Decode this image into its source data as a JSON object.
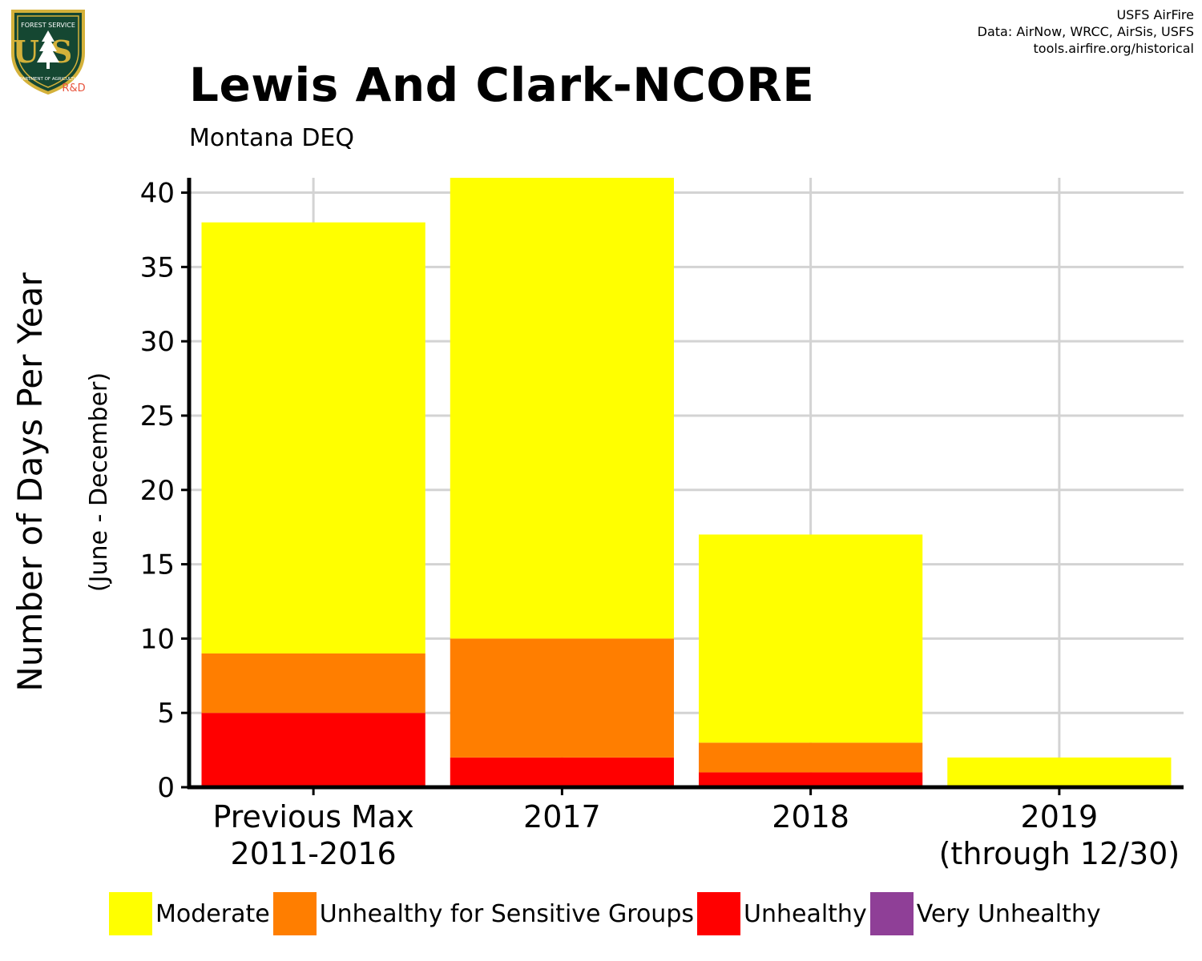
{
  "logo": {
    "top_text": "FOREST SERVICE",
    "shield_text": "US",
    "bottom_text": "DEPARTMENT OF AGRICULTURE",
    "badge": "R&D"
  },
  "credits": [
    "USFS AirFire",
    "Data: AirNow, WRCC, AirSis, USFS",
    "tools.airfire.org/historical"
  ],
  "colors": {
    "moderate": "#ffff00",
    "usg": "#ff7e00",
    "unhealthy": "#ff0000",
    "very_unhealthy": "#8f3f97",
    "grid": "#d3d3d3",
    "logo_green": "#154732",
    "logo_gold": "#d4b13a",
    "badge": "#e8553e"
  },
  "chart_data": {
    "type": "bar",
    "stacked": true,
    "title": "Lewis And Clark-NCORE",
    "subtitle": "Montana DEQ",
    "ylabel": "Number of Days Per Year",
    "ylabel_sub": "(June - December)",
    "ylim": [
      0,
      41
    ],
    "yticks": [
      0,
      5,
      10,
      15,
      20,
      25,
      30,
      35,
      40
    ],
    "grid": true,
    "legend_position": "bottom",
    "categories": [
      [
        "Previous Max",
        "2011-2016"
      ],
      [
        "2017"
      ],
      [
        "2018"
      ],
      [
        "2019",
        "(through 12/30)"
      ]
    ],
    "series": [
      {
        "name": "Unhealthy",
        "color": "#ff0000",
        "values": [
          5,
          2,
          1,
          0
        ]
      },
      {
        "name": "Unhealthy for Sensitive Groups",
        "color": "#ff7e00",
        "values": [
          4,
          8,
          2,
          0
        ]
      },
      {
        "name": "Moderate",
        "color": "#ffff00",
        "values": [
          29,
          31,
          14,
          2
        ]
      },
      {
        "name": "Very Unhealthy",
        "color": "#8f3f97",
        "values": [
          0,
          0,
          0,
          0
        ]
      }
    ],
    "legend": [
      {
        "label": "Moderate",
        "color": "#ffff00"
      },
      {
        "label": "Unhealthy for Sensitive Groups",
        "color": "#ff7e00"
      },
      {
        "label": "Unhealthy",
        "color": "#ff0000"
      },
      {
        "label": "Very Unhealthy",
        "color": "#8f3f97"
      }
    ]
  }
}
